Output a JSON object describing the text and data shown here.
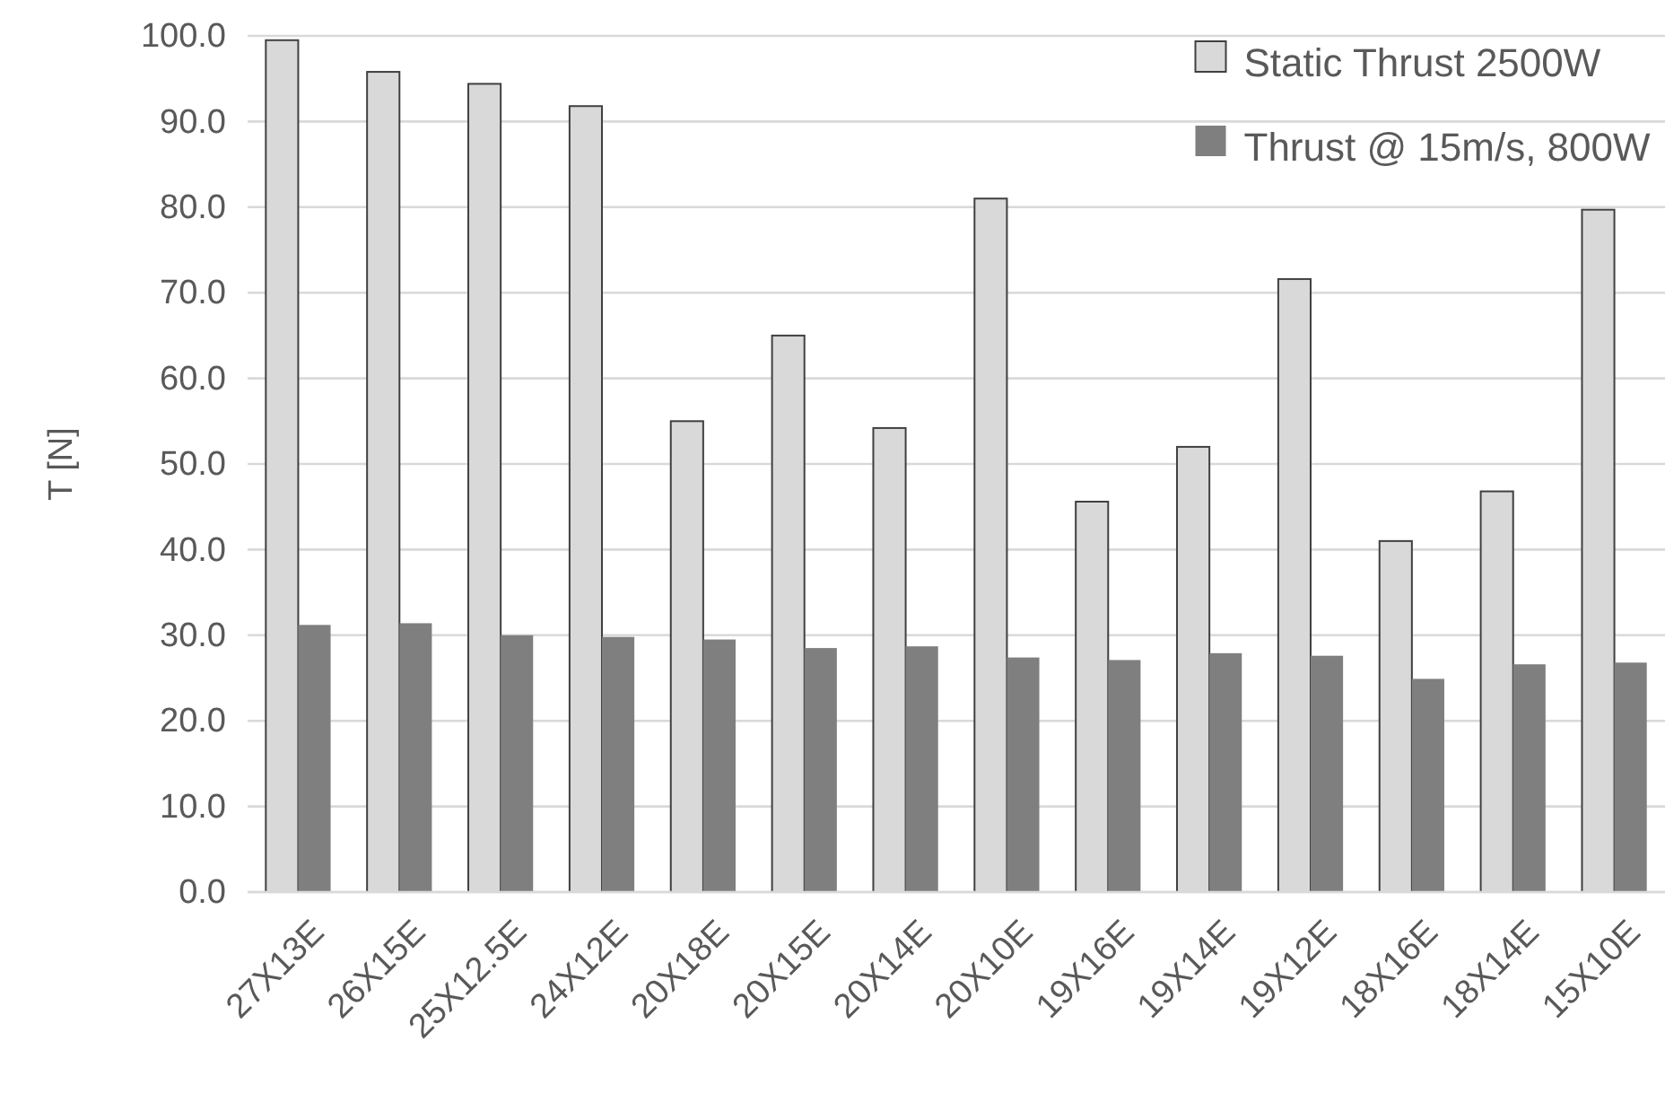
{
  "chart_data": {
    "type": "bar",
    "ylabel": "T [N]",
    "categories": [
      "27X13E",
      "26X15E",
      "25X12.5E",
      "24X12E",
      "20X18E",
      "20X15E",
      "20X14E",
      "20X10E",
      "19X16E",
      "19X14E",
      "19X12E",
      "18X16E",
      "18X14E",
      "15X10E"
    ],
    "series": [
      {
        "name": "Static Thrust 2500W",
        "color": "#d9d9d9",
        "values": [
          99.5,
          95.8,
          94.4,
          91.8,
          55.0,
          65.0,
          54.2,
          81.0,
          45.6,
          52.0,
          71.6,
          41.0,
          46.8,
          79.7
        ]
      },
      {
        "name": "Thrust @ 15m/s, 800W",
        "color": "#7f7f7f",
        "values": [
          31.2,
          31.4,
          30.0,
          29.8,
          29.5,
          28.5,
          28.7,
          27.4,
          27.1,
          27.9,
          27.6,
          24.9,
          26.6,
          26.8
        ]
      }
    ],
    "ylim": [
      0,
      100
    ],
    "yticks": [
      {
        "value": 0,
        "label": "0.0"
      },
      {
        "value": 10,
        "label": "10.0"
      },
      {
        "value": 20,
        "label": "20.0"
      },
      {
        "value": 30,
        "label": "30.0"
      },
      {
        "value": 40,
        "label": "40.0"
      },
      {
        "value": 50,
        "label": "50.0"
      },
      {
        "value": 60,
        "label": "60.0"
      },
      {
        "value": 70,
        "label": "70.0"
      },
      {
        "value": 80,
        "label": "80.0"
      },
      {
        "value": 90,
        "label": "90.0"
      },
      {
        "value": 100,
        "label": "100.0"
      }
    ],
    "grid": "y",
    "legend": "top right"
  }
}
